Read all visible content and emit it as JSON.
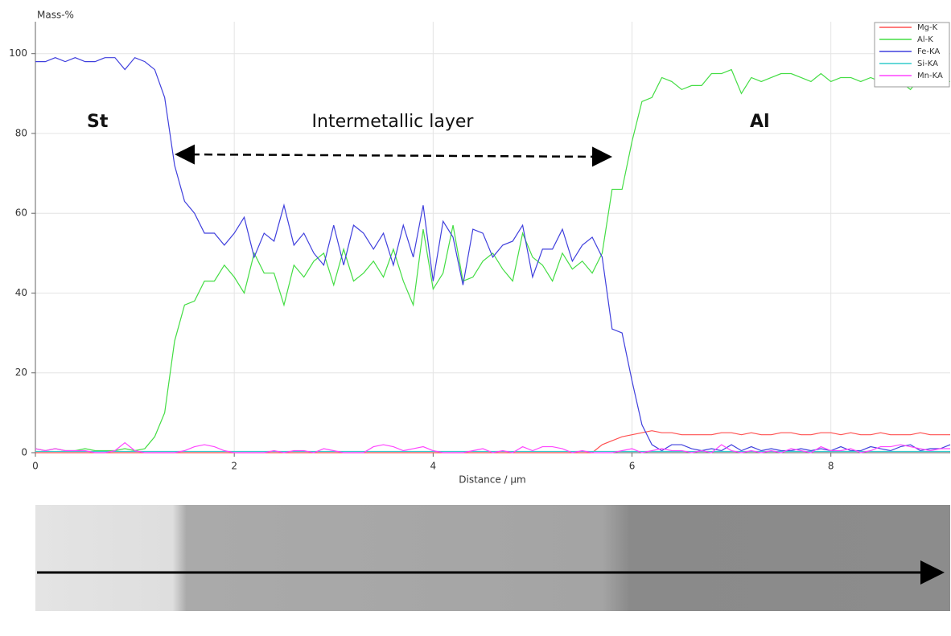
{
  "chart_data": {
    "type": "line",
    "y_label": "Mass-%",
    "x_label": "Distance / µm",
    "annotations": [
      "St",
      "Intermetallic layer",
      "Al"
    ],
    "xlim": [
      0,
      9.2
    ],
    "ylim": [
      0,
      108
    ],
    "xticks": [
      0,
      2,
      4,
      6,
      8
    ],
    "yticks": [
      0,
      20,
      40,
      60,
      80,
      100
    ],
    "grid": true,
    "legend": "top-right",
    "x": [
      0,
      0.1,
      0.2,
      0.3,
      0.4,
      0.5,
      0.6,
      0.7,
      0.8,
      0.9,
      1,
      1.1,
      1.2,
      1.3,
      1.4,
      1.5,
      1.6,
      1.7,
      1.8,
      1.9,
      2,
      2.1,
      2.2,
      2.3,
      2.4,
      2.5,
      2.6,
      2.7,
      2.8,
      2.9,
      3,
      3.1,
      3.2,
      3.3,
      3.4,
      3.5,
      3.6,
      3.7,
      3.8,
      3.9,
      4,
      4.1,
      4.2,
      4.3,
      4.4,
      4.5,
      4.6,
      4.7,
      4.8,
      4.9,
      5,
      5.1,
      5.2,
      5.3,
      5.4,
      5.5,
      5.6,
      5.7,
      5.8,
      5.9,
      6,
      6.1,
      6.2,
      6.3,
      6.4,
      6.5,
      6.6,
      6.7,
      6.8,
      6.9,
      7,
      7.1,
      7.2,
      7.3,
      7.4,
      7.5,
      7.6,
      7.7,
      7.8,
      7.9,
      8,
      8.1,
      8.2,
      8.3,
      8.4,
      8.5,
      8.6,
      8.7,
      8.8,
      8.9,
      9,
      9.1,
      9.2
    ],
    "series": [
      {
        "name": "Mg-K",
        "color": "#ff5050",
        "values": [
          0,
          0,
          0,
          0,
          0,
          0,
          0,
          0,
          0,
          0,
          0,
          0,
          0,
          0,
          0,
          0,
          0,
          0,
          0,
          0,
          0,
          0,
          0,
          0,
          0,
          0,
          0,
          0,
          0,
          0,
          0,
          0,
          0,
          0,
          0,
          0,
          0,
          0,
          0,
          0,
          0,
          0,
          0,
          0,
          0,
          0,
          0,
          0,
          0,
          0,
          0,
          0,
          0,
          0,
          0,
          0,
          0,
          2,
          3,
          4,
          4.5,
          5,
          5.5,
          5,
          5,
          4.5,
          4.5,
          4.5,
          4.5,
          5,
          5,
          4.5,
          5,
          4.5,
          4.5,
          5,
          5,
          4.5,
          4.5,
          5,
          5,
          4.5,
          5,
          4.5,
          4.5,
          5,
          4.5,
          4.5,
          4.5,
          5,
          4.5,
          4.5,
          4.5
        ]
      },
      {
        "name": "Al-K",
        "color": "#44dd44",
        "values": [
          1,
          0.5,
          1,
          0.5,
          0.5,
          1,
          0.5,
          0.5,
          0.5,
          1,
          0.5,
          1,
          4,
          10,
          28,
          37,
          38,
          43,
          43,
          47,
          44,
          40,
          50,
          45,
          45,
          37,
          47,
          44,
          48,
          50,
          42,
          51,
          43,
          45,
          48,
          44,
          51,
          43,
          37,
          56,
          41,
          45,
          57,
          43,
          44,
          48,
          50,
          46,
          43,
          55,
          49,
          47,
          43,
          50,
          46,
          48,
          45,
          50,
          66,
          66,
          78,
          88,
          89,
          94,
          93,
          91,
          92,
          92,
          95,
          95,
          96,
          90,
          94,
          93,
          94,
          95,
          95,
          94,
          93,
          95,
          93,
          94,
          94,
          93,
          94,
          93,
          94,
          93,
          91,
          94,
          94,
          93,
          93
        ]
      },
      {
        "name": "Fe-KA",
        "color": "#4040dd",
        "values": [
          98,
          98,
          99,
          98,
          99,
          98,
          98,
          99,
          99,
          96,
          99,
          98,
          96,
          89,
          72,
          63,
          60,
          55,
          55,
          52,
          55,
          59,
          49,
          55,
          53,
          62,
          52,
          55,
          50,
          47,
          57,
          47,
          57,
          55,
          51,
          55,
          47,
          57,
          49,
          62,
          43,
          58,
          54,
          42,
          56,
          55,
          49,
          52,
          53,
          57,
          44,
          51,
          51,
          56,
          48,
          52,
          54,
          49,
          31,
          30,
          18,
          7,
          2,
          0.5,
          2,
          2,
          1,
          0.5,
          1,
          0.5,
          2,
          0.5,
          1.5,
          0.5,
          1,
          0.5,
          0.5,
          1,
          0.5,
          1,
          0.5,
          1.5,
          0.5,
          0.5,
          1.5,
          1,
          0.5,
          1.5,
          2,
          0.5,
          1,
          1,
          2
        ]
      },
      {
        "name": "Si-KA",
        "color": "#33cccc",
        "values": [
          0.3,
          0.3,
          0.3,
          0.3,
          0.3,
          0.3,
          0.3,
          0.3,
          0.3,
          0.3,
          0.3,
          0.3,
          0.3,
          0.3,
          0.3,
          0.3,
          0.3,
          0.3,
          0.3,
          0.3,
          0.3,
          0.3,
          0.3,
          0.3,
          0.3,
          0.3,
          0.3,
          0.3,
          0.3,
          0.3,
          0.3,
          0.3,
          0.3,
          0.3,
          0.3,
          0.3,
          0.3,
          0.3,
          0.3,
          0.3,
          0.3,
          0.3,
          0.3,
          0.3,
          0.3,
          0.3,
          0.3,
          0.3,
          0.3,
          0.3,
          0.3,
          0.3,
          0.3,
          0.3,
          0.3,
          0.3,
          0.3,
          0.3,
          0.3,
          0.3,
          0.3,
          0.3,
          0.3,
          0.3,
          0.3,
          0.3,
          0.3,
          0.3,
          0.3,
          0.3,
          0.3,
          0.3,
          0.3,
          0.3,
          0.3,
          0.3,
          0.3,
          0.3,
          0.3,
          0.3,
          0.3,
          0.3,
          0.3,
          0.3,
          0.3,
          0.3,
          0.3,
          0.3,
          0.3,
          0.3,
          0.3,
          0.3,
          0.3
        ]
      },
      {
        "name": "Mn-KA",
        "color": "#ff44ff",
        "values": [
          1,
          0.5,
          1,
          0.5,
          0.5,
          0.5,
          0,
          0,
          0.5,
          2.5,
          0.5,
          0,
          0,
          0,
          0,
          0.5,
          1.5,
          2,
          1.5,
          0.5,
          0,
          0,
          0,
          0,
          0.5,
          0,
          0.5,
          0.5,
          0,
          1,
          0.5,
          0,
          0,
          0,
          1.5,
          2,
          1.5,
          0.5,
          1,
          1.5,
          0.5,
          0,
          0,
          0,
          0.5,
          1,
          0,
          0.5,
          0,
          1.5,
          0.5,
          1.5,
          1.5,
          1,
          0,
          0.5,
          0,
          0,
          0,
          0.5,
          1,
          0,
          0.5,
          1,
          0.5,
          0.5,
          0,
          0.5,
          0,
          2,
          0.5,
          0,
          0.5,
          0,
          0.5,
          0,
          1,
          0.5,
          0,
          1.5,
          0.5,
          0.5,
          1,
          0,
          0.5,
          1.5,
          1.5,
          2,
          1.5,
          1,
          0.5,
          1,
          1
        ]
      }
    ]
  }
}
